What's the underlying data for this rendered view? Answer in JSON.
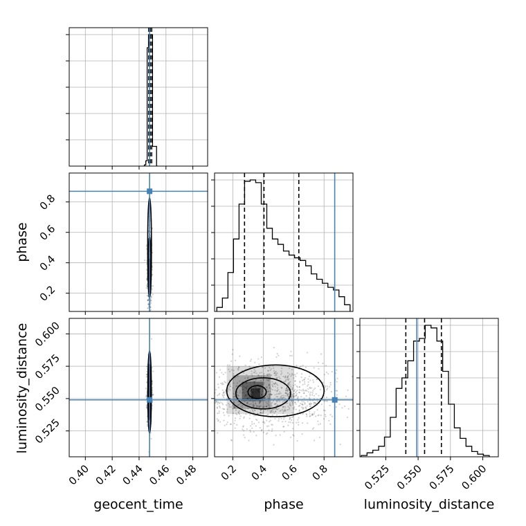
{
  "chart_data": {
    "type": "corner",
    "parameters": [
      "geocent_time",
      "phase",
      "luminosity_distance"
    ],
    "colors": {
      "truth": "#4682b4",
      "hist": "#000000",
      "grid": "#b0b0b0",
      "sample": "#000000"
    },
    "truths": {
      "geocent_time": 0.4478,
      "phase": 0.87,
      "luminosity_distance": 0.549
    },
    "axes": {
      "geocent_time": {
        "range": [
          0.388,
          0.491
        ],
        "ticks": [
          0.4,
          0.42,
          0.44,
          0.46,
          0.48
        ],
        "tick_labels": [
          "0.40",
          "0.42",
          "0.44",
          "0.46",
          "0.48"
        ]
      },
      "phase": {
        "range": [
          0.08,
          0.99
        ],
        "ticks": [
          0.2,
          0.4,
          0.6,
          0.8
        ],
        "tick_labels": [
          "0.2",
          "0.4",
          "0.6",
          "0.8"
        ]
      },
      "luminosity_distance": {
        "range": [
          0.505,
          0.612
        ],
        "ticks": [
          0.525,
          0.55,
          0.575,
          0.6
        ],
        "tick_labels": [
          "0.525",
          "0.550",
          "0.575",
          "0.600"
        ]
      }
    },
    "quantiles": {
      "geocent_time": [
        0.4472,
        0.4483,
        0.4494
      ],
      "phase": [
        0.277,
        0.405,
        0.634
      ],
      "luminosity_distance": [
        0.5405,
        0.555,
        0.568
      ]
    },
    "marginals": {
      "geocent_time": {
        "bins": [
          0.443,
          0.444,
          0.445,
          0.446,
          0.447,
          0.448,
          0.449,
          0.45,
          0.451,
          0.452,
          0.453,
          0.454
        ],
        "counts": [
          0,
          1,
          4,
          90,
          100,
          100,
          100,
          15,
          15,
          15,
          0
        ]
      },
      "phase": {
        "bins": [
          0.095,
          0.1315,
          0.168,
          0.2045,
          0.241,
          0.2775,
          0.314,
          0.3505,
          0.387,
          0.4235,
          0.46,
          0.4965,
          0.533,
          0.5695,
          0.606,
          0.6425,
          0.679,
          0.7155,
          0.752,
          0.7885,
          0.825,
          0.8615,
          0.898,
          0.9345,
          0.971
        ],
        "counts": [
          3,
          10,
          29,
          54,
          80,
          97,
          98,
          96,
          80,
          62,
          54,
          50,
          45,
          42,
          40,
          38,
          34,
          28,
          24,
          21,
          18,
          16,
          11,
          5
        ]
      },
      "luminosity_distance": {
        "bins": [
          0.506,
          0.5105,
          0.515,
          0.5195,
          0.524,
          0.5285,
          0.533,
          0.5375,
          0.542,
          0.5465,
          0.551,
          0.5555,
          0.56,
          0.5645,
          0.569,
          0.5735,
          0.578,
          0.5825,
          0.587,
          0.5915,
          0.596,
          0.6005,
          0.605
        ],
        "counts": [
          1,
          3,
          5,
          8,
          15,
          30,
          52,
          60,
          73,
          88,
          90,
          100,
          98,
          88,
          65,
          40,
          22,
          14,
          8,
          4,
          2,
          1
        ]
      }
    },
    "sample_clouds": {
      "geocent_time_phase": {
        "x": [
          0.4478,
          0.0009
        ],
        "y": [
          0.35,
          0.14
        ],
        "n": 500
      },
      "geocent_time_luminosity_distance": {
        "x": [
          0.4478,
          0.0009
        ],
        "y": [
          0.555,
          0.012
        ],
        "n": 500
      },
      "phase_luminosity_distance": {
        "x": [
          0.45,
          0.22
        ],
        "y": [
          0.552,
          0.013
        ],
        "n": 1100
      }
    },
    "density_blocks": {
      "geocent_time_phase": [
        {
          "x0": 0.4465,
          "x1": 0.4491,
          "y0": 0.2,
          "y1": 0.42,
          "level": 0.55
        },
        {
          "x0": 0.447,
          "x1": 0.4487,
          "y0": 0.27,
          "y1": 0.4,
          "level": 0.85
        }
      ],
      "geocent_time_luminosity_distance": [
        {
          "x0": 0.4466,
          "x1": 0.449,
          "y0": 0.538,
          "y1": 0.575,
          "level": 0.7
        },
        {
          "x0": 0.447,
          "x1": 0.4486,
          "y0": 0.543,
          "y1": 0.568,
          "level": 0.9
        }
      ],
      "phase_luminosity_distance": [
        {
          "x0": 0.16,
          "x1": 0.6,
          "y0": 0.538,
          "y1": 0.575,
          "level": 0.25
        },
        {
          "x0": 0.2,
          "x1": 0.45,
          "y0": 0.542,
          "y1": 0.568,
          "level": 0.45
        },
        {
          "x0": 0.26,
          "x1": 0.4,
          "y0": 0.548,
          "y1": 0.563,
          "level": 0.7
        },
        {
          "x0": 0.32,
          "x1": 0.38,
          "y0": 0.55,
          "y1": 0.558,
          "level": 0.95
        }
      ]
    },
    "contours": {
      "geocent_time_phase": [
        {
          "cx": 0.4478,
          "cy": 0.34,
          "rx": 0.0006,
          "ry": 0.09
        },
        {
          "cx": 0.4478,
          "cy": 0.4,
          "rx": 0.001,
          "ry": 0.17
        },
        {
          "cx": 0.4478,
          "cy": 0.5,
          "rx": 0.0014,
          "ry": 0.33
        }
      ],
      "geocent_time_luminosity_distance": [
        {
          "cx": 0.4478,
          "cy": 0.555,
          "rx": 0.0005,
          "ry": 0.012
        },
        {
          "cx": 0.4478,
          "cy": 0.555,
          "rx": 0.0009,
          "ry": 0.022
        },
        {
          "cx": 0.4478,
          "cy": 0.555,
          "rx": 0.0013,
          "ry": 0.032
        }
      ],
      "phase_luminosity_distance": [
        {
          "cx": 0.36,
          "cy": 0.555,
          "rx": 0.06,
          "ry": 0.005
        },
        {
          "cx": 0.4,
          "cy": 0.554,
          "rx": 0.18,
          "ry": 0.012
        },
        {
          "cx": 0.48,
          "cy": 0.556,
          "rx": 0.32,
          "ry": 0.02
        }
      ]
    },
    "grid": true
  }
}
